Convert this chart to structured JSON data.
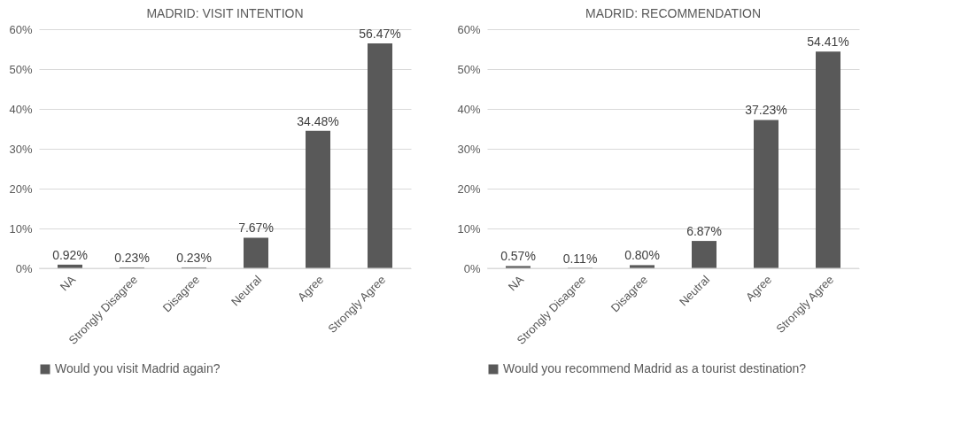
{
  "chart_data": [
    {
      "type": "bar",
      "title": "MADRID: VISIT INTENTION",
      "categories": [
        "NA",
        "Strongly Disagree",
        "Disagree",
        "Neutral",
        "Agree",
        "Strongly Agree"
      ],
      "series": [
        {
          "name": "Would you visit Madrid again?",
          "color": "#595959",
          "values": [
            0.92,
            0.23,
            0.23,
            7.67,
            34.48,
            56.47
          ],
          "value_labels": [
            "0.92%",
            "0.23%",
            "0.23%",
            "7.67%",
            "34.48%",
            "56.47%"
          ]
        }
      ],
      "ylim": [
        0,
        60
      ],
      "yticks": [
        {
          "value": 0,
          "label": "0%"
        },
        {
          "value": 10,
          "label": "10%"
        },
        {
          "value": 20,
          "label": "20%"
        },
        {
          "value": 30,
          "label": "30%"
        },
        {
          "value": 40,
          "label": "40%"
        },
        {
          "value": 50,
          "label": "50%"
        },
        {
          "value": 60,
          "label": "60%"
        }
      ],
      "grid": "y",
      "legend": "bottom"
    },
    {
      "type": "bar",
      "title": "MADRID: RECOMMENDATION",
      "categories": [
        "NA",
        "Strongly Disagree",
        "Disagree",
        "Neutral",
        "Agree",
        "Strongly Agree"
      ],
      "series": [
        {
          "name": "Would you recommend Madrid as a tourist destination?",
          "color": "#595959",
          "values": [
            0.57,
            0.11,
            0.8,
            6.87,
            37.23,
            54.41
          ],
          "value_labels": [
            "0.57%",
            "0.11%",
            "0.80%",
            "6.87%",
            "37.23%",
            "54.41%"
          ]
        }
      ],
      "ylim": [
        0,
        60
      ],
      "yticks": [
        {
          "value": 0,
          "label": "0%"
        },
        {
          "value": 10,
          "label": "10%"
        },
        {
          "value": 20,
          "label": "20%"
        },
        {
          "value": 30,
          "label": "30%"
        },
        {
          "value": 40,
          "label": "40%"
        },
        {
          "value": 50,
          "label": "50%"
        },
        {
          "value": 60,
          "label": "60%"
        }
      ],
      "grid": "y",
      "legend": "bottom"
    }
  ]
}
